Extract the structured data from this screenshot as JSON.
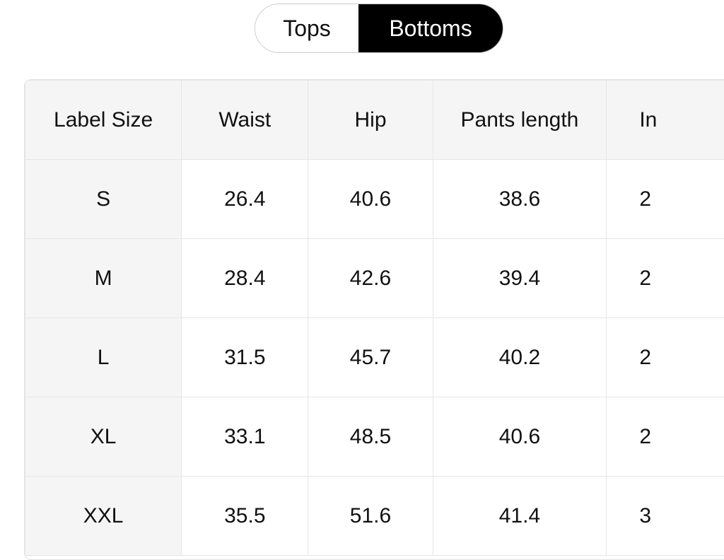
{
  "tabs": [
    {
      "label": "Tops",
      "active": false
    },
    {
      "label": "Bottoms",
      "active": true
    }
  ],
  "table": {
    "headers": [
      "Label Size",
      "Waist",
      "Hip",
      "Pants length",
      "In"
    ],
    "rows": [
      [
        "S",
        "26.4",
        "40.6",
        "38.6",
        "2"
      ],
      [
        "M",
        "28.4",
        "42.6",
        "39.4",
        "2"
      ],
      [
        "L",
        "31.5",
        "45.7",
        "40.2",
        "2"
      ],
      [
        "XL",
        "33.1",
        "48.5",
        "40.6",
        "2"
      ],
      [
        "XXL",
        "35.5",
        "51.6",
        "41.4",
        "3"
      ]
    ]
  }
}
